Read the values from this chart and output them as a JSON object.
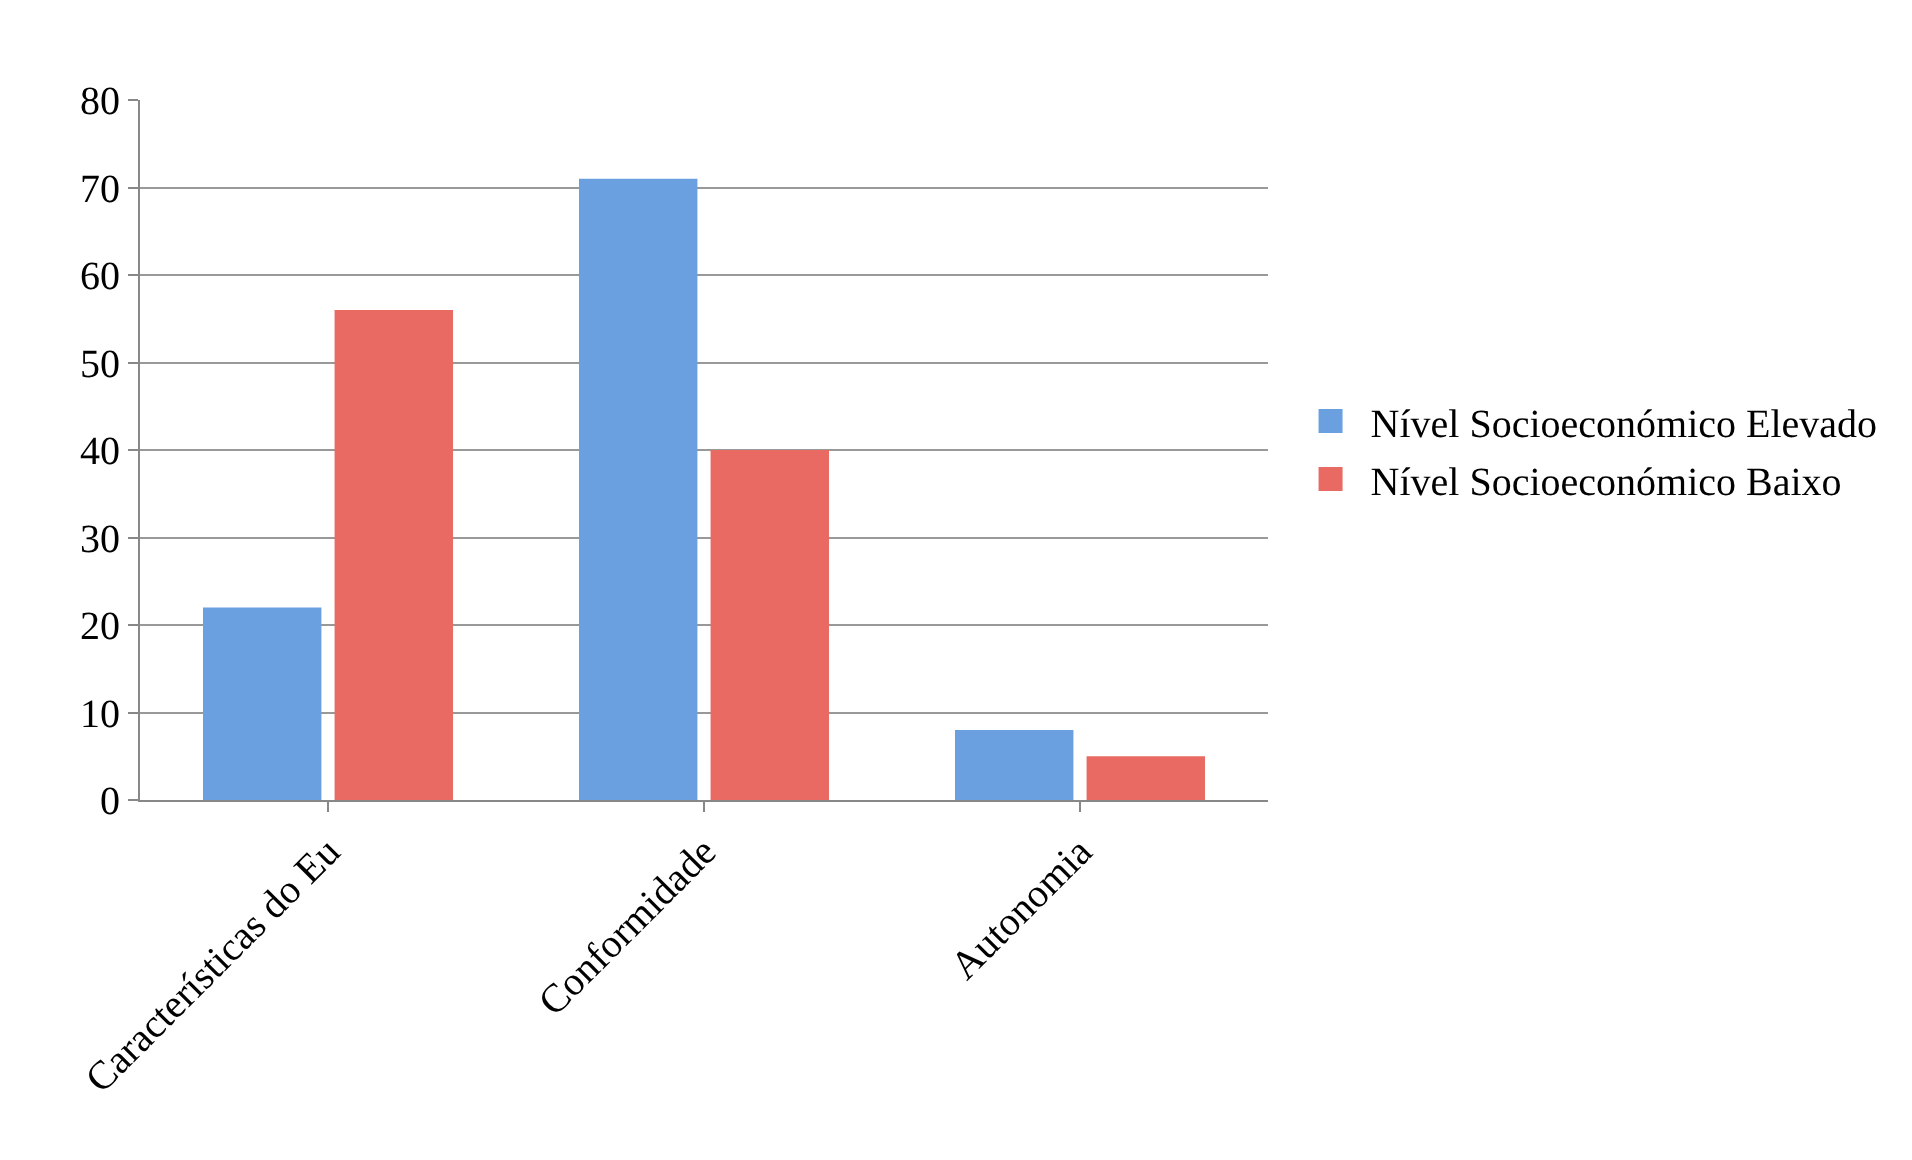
{
  "chart_data": {
    "type": "bar",
    "categories": [
      "Características do Eu",
      "Conformidade",
      "Autonomia"
    ],
    "series": [
      {
        "name": "Nível Socioeconómico Elevado",
        "color": "#6a9fe0",
        "values": [
          22,
          71,
          8
        ]
      },
      {
        "name": "Nível Socioeconómico Baixo",
        "color": "#e86a62",
        "values": [
          56,
          40,
          5
        ]
      }
    ],
    "ylim": [
      0,
      80
    ],
    "yticks": [
      0,
      10,
      20,
      30,
      40,
      50,
      60,
      70,
      80
    ],
    "grid": "y",
    "legend": "right"
  }
}
